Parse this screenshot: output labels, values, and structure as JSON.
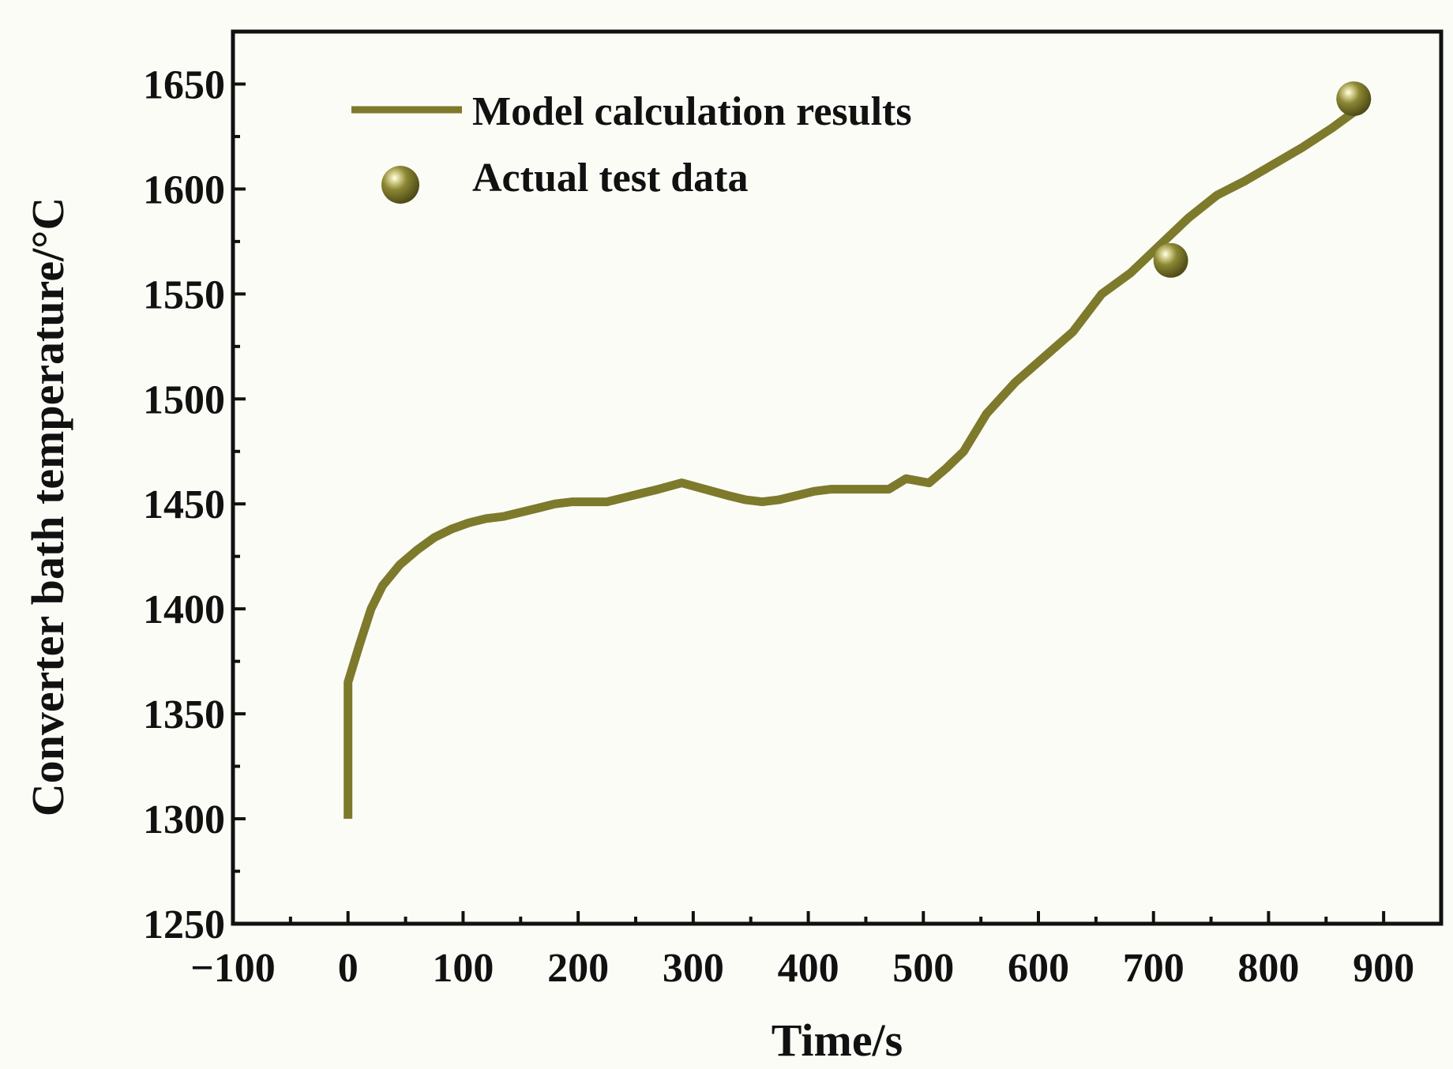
{
  "chart_data": {
    "type": "line",
    "title": "",
    "xlabel": "Time/s",
    "ylabel": "Converter bath temperature/°C",
    "xlim": [
      -100,
      950
    ],
    "ylim": [
      1250,
      1675
    ],
    "x_ticks": [
      -100,
      0,
      100,
      200,
      300,
      400,
      500,
      600,
      700,
      800,
      900
    ],
    "x_tick_labels": [
      "−100",
      "0",
      "100",
      "200",
      "300",
      "400",
      "500",
      "600",
      "700",
      "800",
      "900"
    ],
    "y_ticks": [
      1250,
      1300,
      1350,
      1400,
      1450,
      1500,
      1550,
      1600,
      1650
    ],
    "y_tick_labels": [
      "1250",
      "1300",
      "1350",
      "1400",
      "1450",
      "1500",
      "1550",
      "1600",
      "1650"
    ],
    "grid": false,
    "legend_position": "top-left",
    "color": "#7d7a2c",
    "series": [
      {
        "name": "Model calculation results",
        "kind": "line",
        "x": [
          0,
          0,
          10,
          20,
          30,
          45,
          60,
          75,
          90,
          105,
          120,
          135,
          150,
          165,
          180,
          195,
          210,
          225,
          240,
          255,
          270,
          290,
          310,
          330,
          345,
          360,
          375,
          390,
          405,
          420,
          435,
          450,
          470,
          485,
          505,
          520,
          535,
          555,
          580,
          605,
          630,
          655,
          680,
          705,
          730,
          755,
          780,
          805,
          830,
          855,
          875
        ],
        "y": [
          1300,
          1365,
          1383,
          1400,
          1411,
          1421,
          1428,
          1434,
          1438,
          1441,
          1443,
          1444,
          1446,
          1448,
          1450,
          1451,
          1451,
          1451,
          1453,
          1455,
          1457,
          1460,
          1457,
          1454,
          1452,
          1451,
          1452,
          1454,
          1456,
          1457,
          1457,
          1457,
          1457,
          1462,
          1460,
          1467,
          1475,
          1493,
          1508,
          1520,
          1532,
          1550,
          1560,
          1573,
          1586,
          1597,
          1604,
          1612,
          1620,
          1629,
          1637
        ]
      },
      {
        "name": "Actual test data",
        "kind": "scatter",
        "x": [
          715,
          874
        ],
        "y": [
          1566,
          1643
        ]
      }
    ]
  }
}
